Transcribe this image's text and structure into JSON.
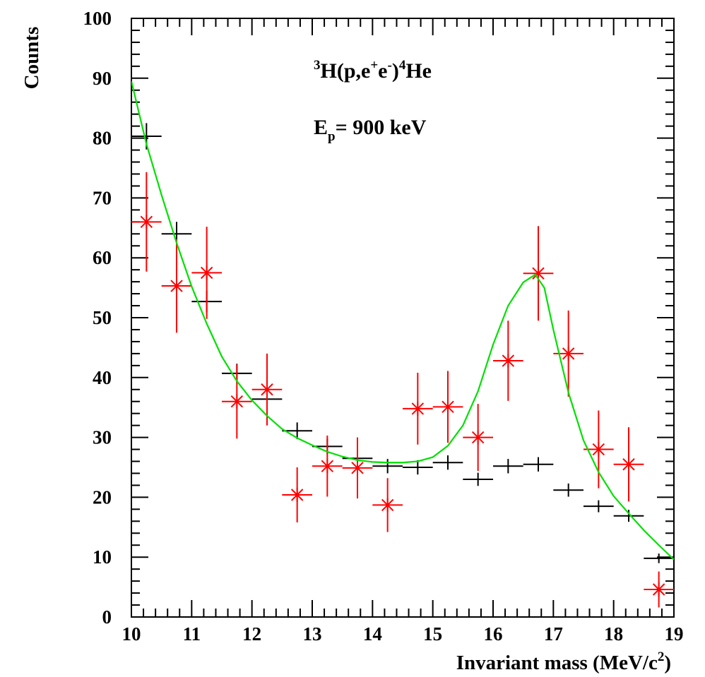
{
  "chart_data": {
    "type": "scatter",
    "xlabel": "Invariant mass (MeV/c²)",
    "xlabel_main": "Invariant mass (MeV/c",
    "xlabel_sup": "2",
    "xlabel_end": ")",
    "ylabel": "Counts",
    "xlim": [
      10,
      19
    ],
    "ylim": [
      0,
      100
    ],
    "x_ticks": [
      "10",
      "11",
      "12",
      "13",
      "14",
      "15",
      "16",
      "17",
      "18",
      "19"
    ],
    "y_ticks": [
      "0",
      "10",
      "20",
      "30",
      "40",
      "50",
      "60",
      "70",
      "80",
      "90",
      "100"
    ],
    "annotations": {
      "reaction": {
        "sup1": "3",
        "t1": "H(p,e",
        "sup2": "+",
        "t2": "e",
        "sup3": "-",
        "t3": ")",
        "sup4": "4",
        "t4": "He"
      },
      "energy": {
        "t1": "E",
        "sub1": "p",
        "t2": "= 900 keV"
      }
    },
    "series": [
      {
        "color": "#000000",
        "marker": "cross",
        "x": [
          10.25,
          10.75,
          11.25,
          11.75,
          12.25,
          12.75,
          13.25,
          13.75,
          14.25,
          14.75,
          15.25,
          15.75,
          16.25,
          16.75,
          17.25,
          17.75,
          18.25,
          18.75
        ],
        "y": [
          80.3,
          64.0,
          52.7,
          40.7,
          36.4,
          31.1,
          28.5,
          26.5,
          25.2,
          25.0,
          25.8,
          23.0,
          25.2,
          25.5,
          21.2,
          18.5,
          16.9,
          9.8
        ],
        "err": [
          2.2,
          2.0,
          1.8,
          1.6,
          1.5,
          1.4,
          1.3,
          1.2,
          1.2,
          1.2,
          1.2,
          1.1,
          1.2,
          1.2,
          1.1,
          1.0,
          1.0,
          0.8
        ]
      },
      {
        "color": "#ff0000",
        "marker": "star",
        "x": [
          10.25,
          10.75,
          11.25,
          11.75,
          12.25,
          12.75,
          13.25,
          13.75,
          14.25,
          14.75,
          15.25,
          15.75,
          16.25,
          16.75,
          17.25,
          17.75,
          18.25,
          18.75
        ],
        "y": [
          66.0,
          55.3,
          57.5,
          36.0,
          38.0,
          20.4,
          25.2,
          24.9,
          18.7,
          34.8,
          35.1,
          30.0,
          42.8,
          57.4,
          44.0,
          28.0,
          25.5,
          4.6
        ],
        "err": [
          8.3,
          7.8,
          7.7,
          6.2,
          6.0,
          4.6,
          5.1,
          5.1,
          4.5,
          6.0,
          6.0,
          5.6,
          6.7,
          7.9,
          7.2,
          6.5,
          6.2,
          3.0
        ]
      },
      {
        "color": "#00e000",
        "marker": "line",
        "x": [
          10.0,
          10.25,
          10.5,
          10.75,
          11.0,
          11.25,
          11.5,
          11.75,
          12.0,
          12.25,
          12.5,
          12.75,
          13.0,
          13.25,
          13.5,
          13.75,
          14.0,
          14.25,
          14.5,
          14.75,
          15.0,
          15.25,
          15.5,
          15.75,
          16.0,
          16.25,
          16.5,
          16.7,
          16.85,
          17.0,
          17.25,
          17.5,
          17.75,
          18.0,
          18.25,
          18.5,
          18.75,
          19.0
        ],
        "y": [
          89.5,
          79.0,
          70.5,
          62.5,
          55.2,
          49.0,
          43.5,
          39.4,
          36.2,
          33.6,
          31.4,
          29.9,
          28.7,
          27.6,
          26.8,
          26.2,
          25.9,
          25.8,
          25.8,
          26.0,
          26.7,
          28.6,
          32.0,
          37.7,
          45.5,
          52.0,
          55.9,
          57.2,
          55.0,
          48.0,
          37.5,
          29.5,
          24.2,
          20.2,
          17.3,
          14.5,
          12.0,
          9.6
        ]
      }
    ]
  }
}
